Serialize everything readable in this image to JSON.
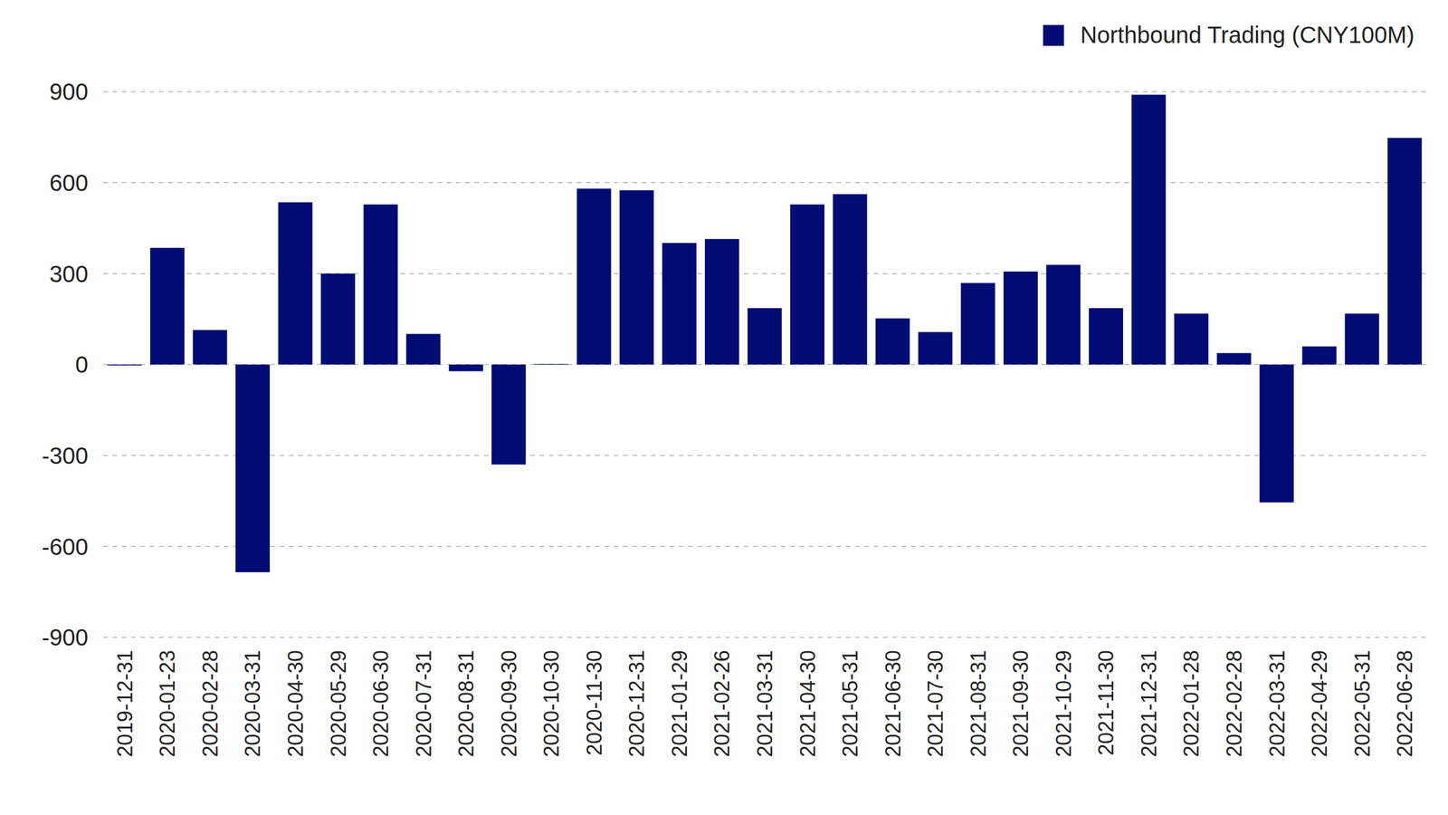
{
  "chart_data": {
    "type": "bar",
    "categories": [
      "2019-12-31",
      "2020-01-23",
      "2020-02-28",
      "2020-03-31",
      "2020-04-30",
      "2020-05-29",
      "2020-06-30",
      "2020-07-31",
      "2020-08-31",
      "2020-09-30",
      "2020-10-30",
      "2020-11-30",
      "2020-12-31",
      "2021-01-29",
      "2021-02-26",
      "2021-03-31",
      "2021-04-30",
      "2021-05-31",
      "2021-06-30",
      "2021-07-30",
      "2021-08-31",
      "2021-09-30",
      "2021-10-29",
      "2021-11-30",
      "2021-12-31",
      "2022-01-28",
      "2022-02-28",
      "2022-03-31",
      "2022-04-29",
      "2022-05-31",
      "2022-06-28"
    ],
    "series": [
      {
        "name": "Northbound Trading (CNY100M)",
        "color": "#000c73",
        "values": [
          -3,
          385,
          114,
          -685,
          535,
          300,
          528,
          101,
          -22,
          -330,
          2,
          580,
          575,
          401,
          414,
          186,
          528,
          562,
          152,
          107,
          269,
          307,
          329,
          186,
          890,
          168,
          38,
          -455,
          60,
          168,
          748
        ]
      }
    ],
    "ylim": [
      -900,
      900
    ],
    "yticks": [
      -900,
      -600,
      -300,
      0,
      300,
      600,
      900
    ],
    "grid": true,
    "legend": "upper right"
  }
}
